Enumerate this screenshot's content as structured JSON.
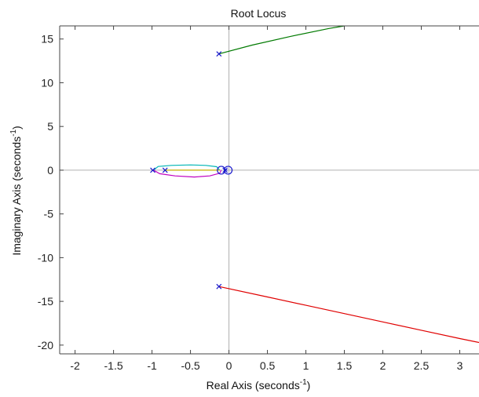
{
  "chart_data": {
    "type": "line",
    "title": "Root Locus",
    "xlabel": {
      "prefix": "Real Axis (seconds",
      "exponent": "-1",
      "suffix": ")"
    },
    "ylabel": {
      "prefix": "Imaginary Axis (seconds",
      "exponent": "-1",
      "suffix": ")"
    },
    "xlim": [
      -2.2,
      3.25
    ],
    "ylim": [
      -21,
      16.5
    ],
    "x_ticks": [
      -2,
      -1.5,
      -1,
      -0.5,
      0,
      0.5,
      1,
      1.5,
      2,
      2.5,
      3
    ],
    "x_tick_labels": [
      "-2",
      "-1.5",
      "-1",
      "-0.5",
      "0",
      "0.5",
      "1",
      "1.5",
      "2",
      "2.5",
      "3"
    ],
    "y_ticks": [
      -20,
      -15,
      -10,
      -5,
      0,
      5,
      10,
      15
    ],
    "y_tick_labels": [
      "-20",
      "-15",
      "-10",
      "-5",
      "0",
      "5",
      "10",
      "15"
    ],
    "grid": false,
    "zero_reference_lines": true,
    "colors": {
      "pole_marker": "#1a1acc",
      "zero_marker": "#1a1acc",
      "reference_lines": "#b0b0b0"
    },
    "series": [
      {
        "color": "#007a00",
        "x": [
          -0.13,
          0.3,
          0.8,
          1.3,
          1.5
        ],
        "y": [
          13.3,
          14.3,
          15.3,
          16.2,
          16.5
        ]
      },
      {
        "color": "#e00000",
        "x": [
          -0.13,
          0.5,
          1.0,
          1.5,
          2.0,
          2.5,
          3.0,
          3.25
        ],
        "y": [
          -13.3,
          -14.5,
          -15.45,
          -16.4,
          -17.35,
          -18.3,
          -19.25,
          -19.7
        ]
      },
      {
        "color": "#00b5b5",
        "x": [
          -0.98,
          -0.92,
          -0.75,
          -0.5,
          -0.3,
          -0.16,
          -0.12
        ],
        "y": [
          0.0,
          0.42,
          0.55,
          0.6,
          0.55,
          0.4,
          0.0
        ]
      },
      {
        "color": "#c000c0",
        "x": [
          -0.98,
          -0.9,
          -0.7,
          -0.45,
          -0.25,
          -0.12,
          -0.1
        ],
        "y": [
          0.0,
          -0.4,
          -0.65,
          -0.78,
          -0.65,
          -0.35,
          0.0
        ]
      },
      {
        "color": "#c8b400",
        "x": [
          -0.83,
          -0.6,
          -0.4,
          -0.2,
          -0.12
        ],
        "y": [
          0.0,
          0.0,
          0.0,
          0.0,
          0.0
        ]
      },
      {
        "color": "#1a1acc",
        "x": [
          -0.05,
          -0.04,
          -0.02
        ],
        "y": [
          0.0,
          0.05,
          0.0
        ]
      }
    ],
    "poles": [
      {
        "x": -0.13,
        "y": 13.3
      },
      {
        "x": -0.13,
        "y": -13.3
      },
      {
        "x": -0.99,
        "y": 0
      },
      {
        "x": -0.83,
        "y": 0
      },
      {
        "x": -0.05,
        "y": 0
      }
    ],
    "zeros": [
      {
        "x": -0.1,
        "y": 0
      },
      {
        "x": -0.01,
        "y": 0
      }
    ]
  }
}
